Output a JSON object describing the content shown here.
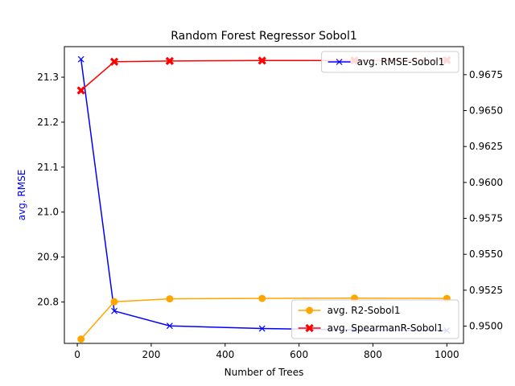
{
  "chart_data": {
    "type": "line",
    "title": "Random Forest Regressor Sobol1",
    "xlabel": "Number of Trees",
    "ylabel_left": "avg. RMSE",
    "ylabel_right": "",
    "x": [
      10,
      100,
      250,
      500,
      750,
      1000
    ],
    "xlim": [
      -35,
      1045
    ],
    "xticks": [
      0,
      200,
      400,
      600,
      800,
      1000
    ],
    "ylim_left": [
      20.708,
      21.368
    ],
    "yticks_left": [
      20.8,
      20.9,
      21.0,
      21.1,
      21.2,
      21.3
    ],
    "ylim_right": [
      0.9488,
      0.96945
    ],
    "yticks_right": [
      0.95,
      0.9525,
      0.955,
      0.9575,
      0.96,
      0.9625,
      0.965,
      0.9675
    ],
    "grid": false,
    "series": [
      {
        "name": "avg. RMSE-Sobol1",
        "axis": "left",
        "color": "#0000ff",
        "marker": "x",
        "values": [
          21.34,
          20.78,
          20.747,
          20.741,
          20.738,
          20.737
        ]
      },
      {
        "name": "avg. R2-Sobol1",
        "axis": "right",
        "color": "#ffa500",
        "marker": "circle",
        "values": [
          0.9491,
          0.9517,
          0.9519,
          0.95193,
          0.95195,
          0.95193
        ]
      },
      {
        "name": "avg. SpearmanR-Sobol1",
        "axis": "right",
        "color": "#ff0000",
        "marker": "x-filled",
        "values": [
          0.9664,
          0.9684,
          0.96845,
          0.96848,
          0.96849,
          0.96851
        ]
      }
    ],
    "legends": [
      {
        "placement": "upper-right",
        "entries": [
          "avg. RMSE-Sobol1"
        ]
      },
      {
        "placement": "lower-right",
        "entries": [
          "avg. R2-Sobol1",
          "avg. SpearmanR-Sobol1"
        ]
      }
    ]
  }
}
